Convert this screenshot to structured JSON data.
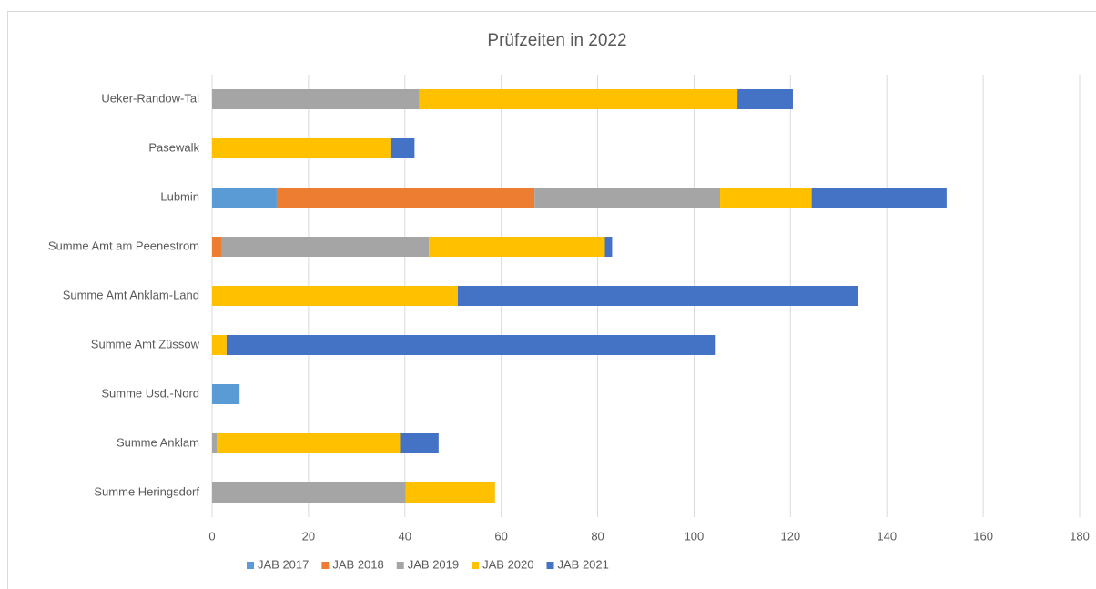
{
  "chart_data": {
    "type": "bar",
    "orientation": "horizontal",
    "stacked": true,
    "title": "Prüfzeiten in 2022",
    "categories": [
      "Ueker-Randow-Tal",
      "Pasewalk",
      "Lubmin",
      "Summe Amt am Peenestrom",
      "Summe Amt Anklam-Land",
      "Summe Amt Züssow",
      "Summe Usd.-Nord",
      "Summe Anklam",
      "Summe Heringsdorf"
    ],
    "series": [
      {
        "name": "JAB 2017",
        "color": "#5b9bd5",
        "values": [
          0,
          0,
          13.4,
          0,
          0,
          0,
          5.7,
          0,
          0
        ]
      },
      {
        "name": "JAB 2018",
        "color": "#ed7d31",
        "values": [
          0,
          0,
          53.5,
          2,
          0,
          0,
          0,
          0,
          0
        ]
      },
      {
        "name": "JAB 2019",
        "color": "#a5a5a5",
        "values": [
          43,
          0,
          38.5,
          43,
          0,
          0,
          0,
          1,
          40.2
        ]
      },
      {
        "name": "JAB 2020",
        "color": "#ffc000",
        "values": [
          66,
          37,
          19,
          36.5,
          51,
          3,
          0,
          38,
          18.5
        ]
      },
      {
        "name": "JAB 2021",
        "color": "#4472c4",
        "values": [
          11.5,
          5,
          28,
          1.5,
          83,
          101.5,
          0,
          8,
          0
        ]
      }
    ],
    "xlim": [
      0,
      180
    ],
    "xticks": [
      0,
      20,
      40,
      60,
      80,
      100,
      120,
      140,
      160,
      180
    ],
    "grid": true,
    "legend": "bottom"
  }
}
